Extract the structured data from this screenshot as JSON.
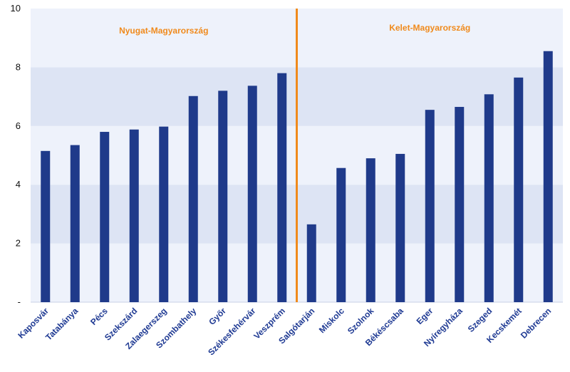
{
  "chart_data": {
    "type": "bar",
    "categories": [
      "Kaposvár",
      "Tatabánya",
      "Pécs",
      "Szekszárd",
      "Zalaegerszeg",
      "Szombathely",
      "Győr",
      "Székesfehérvár",
      "Veszprém",
      "Salgótarján",
      "Miskolc",
      "Szolnok",
      "Békéscsaba",
      "Eger",
      "Nyíregyháza",
      "Szeged",
      "Kecskemét",
      "Debrecen"
    ],
    "values": [
      5.15,
      5.35,
      5.8,
      5.88,
      5.98,
      7.02,
      7.2,
      7.37,
      7.8,
      2.65,
      4.57,
      4.9,
      5.05,
      6.55,
      6.65,
      7.08,
      7.65,
      8.55
    ],
    "ylim": [
      0,
      10
    ],
    "yticks": [
      0,
      2,
      4,
      6,
      8,
      10
    ],
    "ytick_labels": [
      "-",
      "2",
      "4",
      "6",
      "8",
      "10"
    ],
    "divider_after_index": 8,
    "regions": [
      {
        "label": "Nyugat-Magyarország"
      },
      {
        "label": "Kelet-Magyarország"
      }
    ],
    "colors": {
      "bar": "#1f3a8a",
      "band_light": "#eef2fb",
      "band_dark": "#dde4f4",
      "divider": "#f08a1c",
      "region_text": "#f08a1c",
      "category_text": "#1f3a93"
    }
  }
}
